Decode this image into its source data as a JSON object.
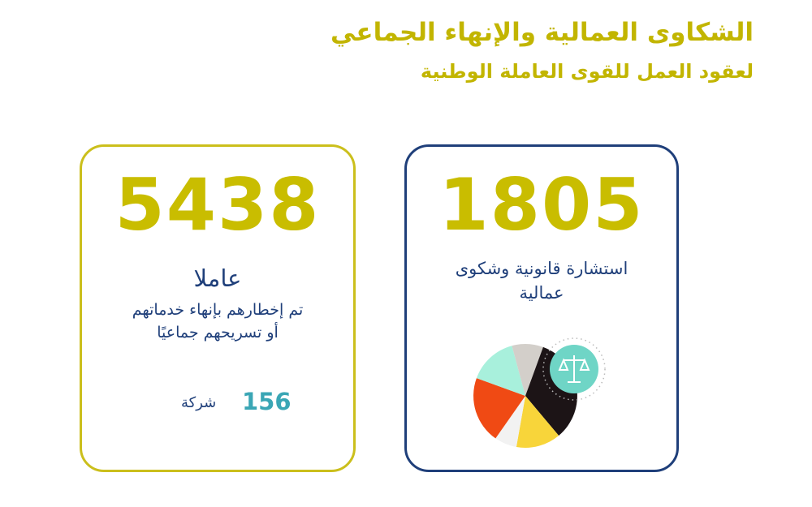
{
  "title": {
    "line1": "الشكاوى العمالية والإنهاء الجماعي",
    "line2": "لعقود العمل للقوى العاملة الوطنية"
  },
  "cards": [
    {
      "number": 5438,
      "unit": "عاملا",
      "description": [
        "تم إخطارهم بإنهاء خدماتهم",
        "أو تسريحهم جماعيًا"
      ],
      "companies": {
        "count": 156,
        "label": "شركة"
      }
    },
    {
      "number": 1805,
      "description": [
        "استشارة قانونية وشكوى",
        "عمالية"
      ]
    }
  ]
}
